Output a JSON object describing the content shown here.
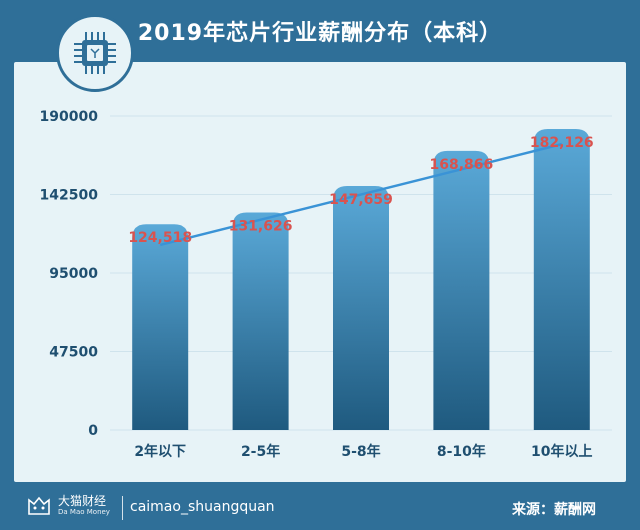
{
  "header": {
    "title": "2019年芯片行业薪酬分布（本科）"
  },
  "footer": {
    "brand_name": "大猫财经",
    "brand_sub": "Da Mao Money",
    "handle": "caimao_shuangquan",
    "source": "来源：薪酬网"
  },
  "icons": {
    "badge": "microchip-icon",
    "brand": "cat-logo-icon"
  },
  "colors": {
    "background": "#2f6f98",
    "panel": "#e7f3f7",
    "bar_top": "#5aa9d8",
    "bar_bottom": "#1f5a7f",
    "trend_line": "#3a93d6",
    "data_label": "#d9534f"
  },
  "chart_data": {
    "type": "bar",
    "title": "2019年芯片行业薪酬分布（本科）",
    "xlabel": "",
    "ylabel": "",
    "categories": [
      "2年以下",
      "2-5年",
      "5-8年",
      "8-10年",
      "10年以上"
    ],
    "values": [
      124518,
      131626,
      147659,
      168866,
      182126
    ],
    "value_labels": [
      "124,518",
      "131,626",
      "147,659",
      "168,866",
      "182,126"
    ],
    "yticks": [
      0,
      47500,
      95000,
      142500,
      190000
    ],
    "ytick_labels": [
      "0",
      "47500",
      "95000",
      "142500",
      "190000"
    ],
    "ylim": [
      0,
      190000
    ],
    "grid": true,
    "trend_line": true
  }
}
